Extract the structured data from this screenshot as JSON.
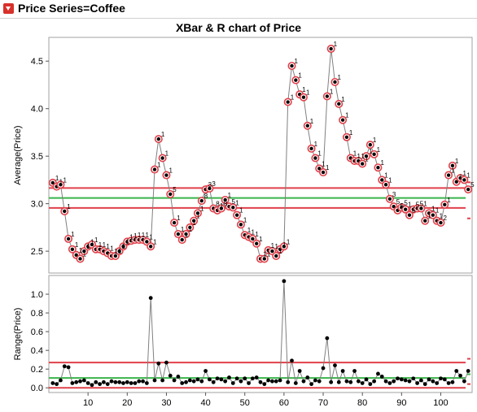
{
  "header": {
    "title": "Price Series=Coffee"
  },
  "chart_data": [
    {
      "type": "line",
      "title": "XBar & R chart of Price",
      "ylabel": "Average(Price)",
      "ylim": [
        2.27,
        4.75
      ],
      "yticks": [
        2.5,
        3.0,
        3.5,
        4.0,
        4.5
      ],
      "x": [
        1,
        2,
        3,
        4,
        5,
        6,
        7,
        8,
        9,
        10,
        11,
        12,
        13,
        14,
        15,
        16,
        17,
        18,
        19,
        20,
        21,
        22,
        23,
        24,
        25,
        26,
        27,
        28,
        29,
        30,
        31,
        32,
        33,
        34,
        35,
        36,
        37,
        38,
        39,
        40,
        41,
        42,
        43,
        44,
        45,
        46,
        47,
        48,
        49,
        50,
        51,
        52,
        53,
        54,
        55,
        56,
        57,
        58,
        59,
        60,
        61,
        62,
        63,
        64,
        65,
        66,
        67,
        68,
        69,
        70,
        71,
        72,
        73,
        74,
        75,
        76,
        77,
        78,
        79,
        80,
        81,
        82,
        83,
        84,
        85,
        86,
        87,
        88,
        89,
        90,
        91,
        92,
        93,
        94,
        95,
        96,
        97,
        98,
        99,
        100,
        101,
        102,
        103,
        104,
        105,
        106,
        107
      ],
      "values": [
        3.22,
        3.18,
        3.2,
        2.92,
        2.63,
        2.52,
        2.46,
        2.42,
        2.5,
        2.55,
        2.57,
        2.52,
        2.52,
        2.5,
        2.48,
        2.45,
        2.45,
        2.5,
        2.55,
        2.6,
        2.61,
        2.62,
        2.62,
        2.62,
        2.6,
        2.55,
        3.36,
        3.68,
        3.48,
        3.3,
        3.1,
        2.8,
        2.68,
        2.62,
        2.68,
        2.75,
        2.82,
        2.9,
        3.03,
        3.15,
        3.16,
        2.95,
        2.93,
        2.95,
        3.04,
        2.97,
        2.96,
        2.88,
        2.78,
        2.67,
        2.65,
        2.63,
        2.58,
        2.42,
        2.42,
        2.51,
        2.5,
        2.45,
        2.52,
        2.55,
        4.07,
        4.45,
        4.3,
        4.15,
        4.12,
        3.82,
        3.58,
        3.48,
        3.37,
        3.33,
        4.13,
        4.63,
        4.28,
        4.05,
        3.88,
        3.7,
        3.48,
        3.45,
        3.45,
        3.42,
        3.5,
        3.62,
        3.52,
        3.38,
        3.25,
        3.2,
        3.05,
        2.97,
        2.93,
        2.96,
        2.94,
        2.88,
        2.94,
        2.95,
        2.95,
        2.82,
        2.9,
        2.88,
        2.82,
        2.8,
        2.99,
        3.3,
        3.4,
        3.23,
        3.27,
        3.25,
        3.15
      ],
      "labels": [
        {
          "x": 1,
          "text": "1"
        },
        {
          "x": 2,
          "text": "1"
        },
        {
          "x": 3,
          "text": "1"
        },
        {
          "x": 4,
          "text": "1"
        },
        {
          "x": 5,
          "text": "1"
        },
        {
          "x": 6,
          "text": "1"
        },
        {
          "x": 7,
          "text": "1"
        },
        {
          "x": 8,
          "text": "1"
        },
        {
          "x": 9,
          "text": "1"
        },
        {
          "x": 10,
          "text": "1"
        },
        {
          "x": 11,
          "text": "1"
        },
        {
          "x": 12,
          "text": "1"
        },
        {
          "x": 13,
          "text": "1"
        },
        {
          "x": 14,
          "text": "1"
        },
        {
          "x": 15,
          "text": "1"
        },
        {
          "x": 16,
          "text": "1"
        },
        {
          "x": 17,
          "text": "1"
        },
        {
          "x": 18,
          "text": "1"
        },
        {
          "x": 19,
          "text": "1"
        },
        {
          "x": 20,
          "text": "1"
        },
        {
          "x": 21,
          "text": "1"
        },
        {
          "x": 22,
          "text": "1"
        },
        {
          "x": 23,
          "text": "1"
        },
        {
          "x": 24,
          "text": "1"
        },
        {
          "x": 25,
          "text": "1"
        },
        {
          "x": 26,
          "text": "1"
        },
        {
          "x": 27,
          "text": "1"
        },
        {
          "x": 28,
          "text": "1"
        },
        {
          "x": 29,
          "text": "1"
        },
        {
          "x": 30,
          "text": "1"
        },
        {
          "x": 31,
          "text": "5"
        },
        {
          "x": 32,
          "text": "1"
        },
        {
          "x": 33,
          "text": "1"
        },
        {
          "x": 34,
          "text": "1"
        },
        {
          "x": 35,
          "text": "1"
        },
        {
          "x": 36,
          "text": "1"
        },
        {
          "x": 37,
          "text": "1"
        },
        {
          "x": 38,
          "text": "1"
        },
        {
          "x": 39,
          "text": "8"
        },
        {
          "x": 40,
          "text": "3"
        },
        {
          "x": 41,
          "text": "3"
        },
        {
          "x": 42,
          "text": "8"
        },
        {
          "x": 43,
          "text": "1"
        },
        {
          "x": 44,
          "text": "8"
        },
        {
          "x": 45,
          "text": "1"
        },
        {
          "x": 46,
          "text": "5"
        },
        {
          "x": 47,
          "text": "1"
        },
        {
          "x": 48,
          "text": "1"
        },
        {
          "x": 49,
          "text": "1"
        },
        {
          "x": 50,
          "text": "1"
        },
        {
          "x": 51,
          "text": "1"
        },
        {
          "x": 52,
          "text": "1"
        },
        {
          "x": 53,
          "text": "1"
        },
        {
          "x": 54,
          "text": "1"
        },
        {
          "x": 55,
          "text": "1"
        },
        {
          "x": 56,
          "text": "1"
        },
        {
          "x": 57,
          "text": "1"
        },
        {
          "x": 58,
          "text": "1"
        },
        {
          "x": 59,
          "text": "1"
        },
        {
          "x": 60,
          "text": "1"
        },
        {
          "x": 61,
          "text": "1"
        },
        {
          "x": 62,
          "text": "1"
        },
        {
          "x": 63,
          "text": "1"
        },
        {
          "x": 64,
          "text": "1"
        },
        {
          "x": 65,
          "text": "1"
        },
        {
          "x": 66,
          "text": "1"
        },
        {
          "x": 67,
          "text": "1"
        },
        {
          "x": 68,
          "text": "1"
        },
        {
          "x": 69,
          "text": "1"
        },
        {
          "x": 70,
          "text": "1"
        },
        {
          "x": 71,
          "text": "1"
        },
        {
          "x": 72,
          "text": "1"
        },
        {
          "x": 73,
          "text": "1"
        },
        {
          "x": 74,
          "text": "1"
        },
        {
          "x": 75,
          "text": "1"
        },
        {
          "x": 76,
          "text": "1"
        },
        {
          "x": 77,
          "text": "1"
        },
        {
          "x": 78,
          "text": "1"
        },
        {
          "x": 79,
          "text": "1"
        },
        {
          "x": 80,
          "text": "1"
        },
        {
          "x": 81,
          "text": "1"
        },
        {
          "x": 82,
          "text": "1"
        },
        {
          "x": 83,
          "text": "1"
        },
        {
          "x": 84,
          "text": "1"
        },
        {
          "x": 85,
          "text": "1"
        },
        {
          "x": 86,
          "text": "1"
        },
        {
          "x": 87,
          "text": "3"
        },
        {
          "x": 88,
          "text": "5"
        },
        {
          "x": 89,
          "text": "5"
        },
        {
          "x": 90,
          "text": "5"
        },
        {
          "x": 91,
          "text": "1"
        },
        {
          "x": 92,
          "text": "5"
        },
        {
          "x": 93,
          "text": "5"
        },
        {
          "x": 94,
          "text": "5"
        },
        {
          "x": 95,
          "text": "1"
        },
        {
          "x": 96,
          "text": "1"
        },
        {
          "x": 97,
          "text": "1"
        },
        {
          "x": 98,
          "text": "1"
        },
        {
          "x": 99,
          "text": "1"
        },
        {
          "x": 100,
          "text": "2"
        },
        {
          "x": 101,
          "text": "1"
        },
        {
          "x": 102,
          "text": "1"
        },
        {
          "x": 103,
          "text": "1"
        },
        {
          "x": 104,
          "text": "1"
        },
        {
          "x": 105,
          "text": "1"
        },
        {
          "x": 106,
          "text": "1"
        },
        {
          "x": 107,
          "text": "5"
        }
      ],
      "limits": {
        "ucl": 3.165,
        "center": 3.06,
        "lcl": 2.955
      },
      "colors": {
        "line": "#808080",
        "point": "#000000",
        "flag": "#e0404a",
        "center": "#39b54a",
        "limit": "#e0404a"
      }
    },
    {
      "type": "line",
      "ylabel": "Range(Price)",
      "ylim": [
        -0.05,
        1.2
      ],
      "yticks": [
        0.0,
        0.2,
        0.4,
        0.6,
        0.8,
        1.0
      ],
      "xlim": [
        0,
        108
      ],
      "xticks": [
        10,
        20,
        30,
        40,
        50,
        60,
        70,
        80,
        90,
        100
      ],
      "values": [
        0.05,
        0.04,
        0.08,
        0.23,
        0.22,
        0.05,
        0.06,
        0.07,
        0.08,
        0.05,
        0.03,
        0.06,
        0.04,
        0.06,
        0.04,
        0.07,
        0.06,
        0.06,
        0.05,
        0.06,
        0.05,
        0.05,
        0.07,
        0.07,
        0.05,
        0.96,
        0.08,
        0.26,
        0.08,
        0.27,
        0.13,
        0.08,
        0.12,
        0.05,
        0.06,
        0.08,
        0.07,
        0.09,
        0.07,
        0.18,
        0.09,
        0.06,
        0.1,
        0.09,
        0.07,
        0.11,
        0.05,
        0.1,
        0.07,
        0.1,
        0.05,
        0.1,
        0.11,
        0.06,
        0.04,
        0.08,
        0.07,
        0.07,
        0.08,
        1.14,
        0.06,
        0.29,
        0.05,
        0.18,
        0.07,
        0.11,
        0.04,
        0.08,
        0.07,
        0.21,
        0.53,
        0.06,
        0.24,
        0.06,
        0.18,
        0.07,
        0.06,
        0.18,
        0.07,
        0.05,
        0.09,
        0.04,
        0.07,
        0.15,
        0.12,
        0.07,
        0.05,
        0.07,
        0.1,
        0.09,
        0.08,
        0.07,
        0.1,
        0.05,
        0.08,
        0.04,
        0.09,
        0.07,
        0.05,
        0.1,
        0.09,
        0.05,
        0.06,
        0.18,
        0.13,
        0.07,
        0.18
      ],
      "limits": {
        "ucl": 0.27,
        "center": 0.105,
        "lcl": 0.0
      },
      "colors": {
        "line": "#808080",
        "point": "#000000",
        "center": "#39b54a",
        "limit": "#e0404a"
      }
    }
  ]
}
